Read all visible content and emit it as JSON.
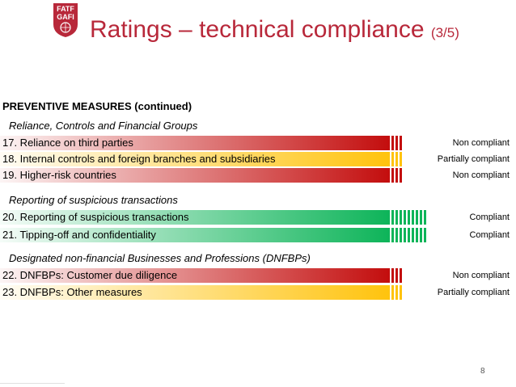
{
  "header": {
    "logo_text_1": "FATF",
    "logo_text_2": "GAFI",
    "title": "Ratings – technical compliance",
    "title_suffix": "(3/5)"
  },
  "section_title": "PREVENTIVE MEASURES (continued)",
  "colors": {
    "non_compliant": "#c00000",
    "partially_compliant": "#ffc000",
    "compliant": "#00b050",
    "title": "#b8283a"
  },
  "groups": [
    {
      "name": "Reliance, Controls and Financial Groups",
      "rows": [
        {
          "label": "17. Reliance on third parties",
          "rating": "Non compliant",
          "level": "non"
        },
        {
          "label": "18. Internal controls and foreign branches and subsidiaries",
          "rating": "Partially compliant",
          "level": "partial"
        },
        {
          "label": "19. Higher-risk countries",
          "rating": "Non compliant",
          "level": "non"
        }
      ]
    },
    {
      "name": "Reporting of suspicious transactions",
      "rows": [
        {
          "label": "20. Reporting of suspicious transactions",
          "rating": "Compliant",
          "level": "compliant"
        },
        {
          "label": "21. Tipping-off and confidentiality",
          "rating": "Compliant",
          "level": "compliant"
        }
      ]
    },
    {
      "name": "Designated non-financial Businesses and Professions (DNFBPs)",
      "rows": [
        {
          "label": "22. DNFBPs: Customer due diligence",
          "rating": "Non compliant",
          "level": "non"
        },
        {
          "label": "23. DNFBPs: Other measures",
          "rating": "Partially compliant",
          "level": "partial"
        }
      ]
    }
  ],
  "page_number": "8"
}
